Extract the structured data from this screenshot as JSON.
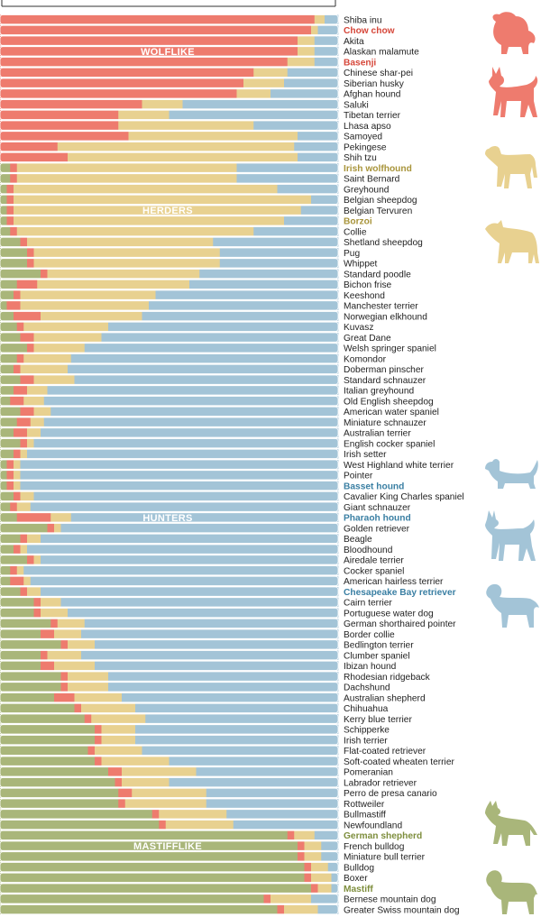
{
  "colors": {
    "wolflike": "#EE7B6E",
    "herders": "#E8D190",
    "hunters": "#A3C4D7",
    "mastifflike": "#A9B67A",
    "label_default": "#222222",
    "label_wolflike": "#D6473A",
    "label_herders": "#A8943A",
    "label_hunters": "#3A7FA3",
    "label_mastifflike": "#7E8E3D"
  },
  "chart_data": {
    "type": "bar",
    "orientation": "horizontal",
    "stacked": true,
    "normalized": true,
    "stack_order": [
      "Mastifflike",
      "Wolflike",
      "Herders",
      "Hunters"
    ],
    "group_labels": [
      {
        "text": "WOLFLIKE",
        "at_breed": "Alaskan malamute"
      },
      {
        "text": "HERDERS",
        "at_breed": "Belgian Tervuren"
      },
      {
        "text": "HUNTERS",
        "at_breed": "Pharaoh hound"
      },
      {
        "text": "MASTIFFLIKE",
        "at_breed": "French bulldog"
      }
    ],
    "highlighted_breeds": [
      {
        "name": "Chow chow",
        "group": "wolflike"
      },
      {
        "name": "Basenji",
        "group": "wolflike"
      },
      {
        "name": "Irish wolfhound",
        "group": "herders"
      },
      {
        "name": "Borzoi",
        "group": "herders"
      },
      {
        "name": "Basset hound",
        "group": "hunters"
      },
      {
        "name": "Pharaoh hound",
        "group": "hunters"
      },
      {
        "name": "Chesapeake Bay retriever",
        "group": "hunters"
      },
      {
        "name": "German shepherd",
        "group": "mastifflike"
      },
      {
        "name": "Mastiff",
        "group": "mastifflike"
      }
    ],
    "categories": [
      "Shiba inu",
      "Chow chow",
      "Akita",
      "Alaskan malamute",
      "Basenji",
      "Chinese shar-pei",
      "Siberian husky",
      "Afghan hound",
      "Saluki",
      "Tibetan terrier",
      "Lhasa apso",
      "Samoyed",
      "Pekingese",
      "Shih tzu",
      "Irish wolfhound",
      "Saint Bernard",
      "Greyhound",
      "Belgian sheepdog",
      "Belgian Tervuren",
      "Borzoi",
      "Collie",
      "Shetland sheepdog",
      "Pug",
      "Whippet",
      "Standard poodle",
      "Bichon frise",
      "Keeshond",
      "Manchester terrier",
      "Norwegian elkhound",
      "Kuvasz",
      "Great Dane",
      "Welsh springer spaniel",
      "Komondor",
      "Doberman pinscher",
      "Standard schnauzer",
      "Italian greyhound",
      "Old English sheepdog",
      "American water spaniel",
      "Miniature schnauzer",
      "Australian terrier",
      "English cocker spaniel",
      "Irish setter",
      "West Highland white terrier",
      "Pointer",
      "Basset hound",
      "Cavalier King Charles spaniel",
      "Giant schnauzer",
      "Pharaoh hound",
      "Golden retriever",
      "Beagle",
      "Bloodhound",
      "Airedale terrier",
      "Cocker spaniel",
      "American hairless terrier",
      "Chesapeake Bay retriever",
      "Cairn terrier",
      "Portuguese water dog",
      "German shorthaired pointer",
      "Border collie",
      "Bedlington terrier",
      "Clumber spaniel",
      "Ibizan hound",
      "Rhodesian ridgeback",
      "Dachshund",
      "Australian shepherd",
      "Chihuahua",
      "Kerry blue terrier",
      "Schipperke",
      "Irish terrier",
      "Flat-coated retriever",
      "Soft-coated wheaten terrier",
      "Pomeranian",
      "Labrador retriever",
      "Perro de presa canario",
      "Rottweiler",
      "Bullmastiff",
      "Newfoundland",
      "German shepherd",
      "French bulldog",
      "Miniature bull terrier",
      "Bulldog",
      "Boxer",
      "Mastiff",
      "Bernese mountain dog",
      "Greater Swiss mountain dog"
    ],
    "series": [
      {
        "key": "mastifflike",
        "values": [
          0.0,
          0.0,
          0.0,
          0.0,
          0.0,
          0.0,
          0.0,
          0.0,
          0.0,
          0.0,
          0.0,
          0.0,
          0.0,
          0.0,
          0.03,
          0.03,
          0.02,
          0.02,
          0.02,
          0.02,
          0.03,
          0.06,
          0.08,
          0.08,
          0.12,
          0.05,
          0.04,
          0.02,
          0.04,
          0.05,
          0.06,
          0.08,
          0.05,
          0.04,
          0.06,
          0.04,
          0.03,
          0.06,
          0.05,
          0.04,
          0.06,
          0.04,
          0.02,
          0.02,
          0.02,
          0.04,
          0.03,
          0.05,
          0.14,
          0.06,
          0.04,
          0.08,
          0.03,
          0.03,
          0.06,
          0.1,
          0.1,
          0.15,
          0.12,
          0.18,
          0.12,
          0.12,
          0.18,
          0.18,
          0.16,
          0.22,
          0.25,
          0.28,
          0.28,
          0.26,
          0.28,
          0.32,
          0.34,
          0.35,
          0.35,
          0.45,
          0.47,
          0.85,
          0.88,
          0.88,
          0.9,
          0.9,
          0.92,
          0.78,
          0.82
        ]
      },
      {
        "key": "wolflike",
        "values": [
          0.93,
          0.92,
          0.88,
          0.88,
          0.85,
          0.75,
          0.72,
          0.7,
          0.42,
          0.35,
          0.35,
          0.38,
          0.17,
          0.2,
          0.02,
          0.02,
          0.02,
          0.02,
          0.02,
          0.02,
          0.02,
          0.02,
          0.02,
          0.02,
          0.02,
          0.06,
          0.02,
          0.04,
          0.08,
          0.02,
          0.04,
          0.02,
          0.02,
          0.02,
          0.04,
          0.04,
          0.04,
          0.04,
          0.04,
          0.04,
          0.02,
          0.02,
          0.02,
          0.02,
          0.02,
          0.02,
          0.02,
          0.1,
          0.02,
          0.02,
          0.02,
          0.02,
          0.02,
          0.04,
          0.02,
          0.02,
          0.02,
          0.02,
          0.04,
          0.02,
          0.02,
          0.04,
          0.02,
          0.02,
          0.06,
          0.02,
          0.02,
          0.02,
          0.02,
          0.02,
          0.02,
          0.04,
          0.02,
          0.04,
          0.02,
          0.02,
          0.02,
          0.02,
          0.02,
          0.02,
          0.02,
          0.02,
          0.02,
          0.02,
          0.02
        ]
      },
      {
        "key": "herders",
        "values": [
          0.03,
          0.02,
          0.05,
          0.05,
          0.08,
          0.1,
          0.12,
          0.1,
          0.12,
          0.15,
          0.4,
          0.5,
          0.7,
          0.68,
          0.65,
          0.65,
          0.78,
          0.88,
          0.85,
          0.8,
          0.7,
          0.55,
          0.55,
          0.55,
          0.45,
          0.45,
          0.4,
          0.38,
          0.3,
          0.25,
          0.2,
          0.15,
          0.14,
          0.14,
          0.12,
          0.06,
          0.06,
          0.05,
          0.04,
          0.04,
          0.02,
          0.02,
          0.02,
          0.02,
          0.02,
          0.04,
          0.04,
          0.06,
          0.02,
          0.04,
          0.02,
          0.02,
          0.02,
          0.02,
          0.04,
          0.06,
          0.08,
          0.08,
          0.08,
          0.08,
          0.1,
          0.12,
          0.12,
          0.12,
          0.14,
          0.16,
          0.16,
          0.1,
          0.1,
          0.14,
          0.2,
          0.22,
          0.14,
          0.22,
          0.24,
          0.2,
          0.2,
          0.06,
          0.05,
          0.05,
          0.05,
          0.06,
          0.04,
          0.12,
          0.1
        ]
      },
      {
        "key": "hunters",
        "values": [
          0.04,
          0.06,
          0.07,
          0.07,
          0.07,
          0.15,
          0.16,
          0.2,
          0.46,
          0.5,
          0.25,
          0.12,
          0.13,
          0.12,
          0.3,
          0.3,
          0.18,
          0.08,
          0.11,
          0.16,
          0.25,
          0.37,
          0.35,
          0.35,
          0.41,
          0.44,
          0.54,
          0.56,
          0.58,
          0.68,
          0.7,
          0.75,
          0.79,
          0.8,
          0.78,
          0.86,
          0.87,
          0.85,
          0.87,
          0.88,
          0.9,
          0.92,
          0.94,
          0.94,
          0.94,
          0.9,
          0.91,
          0.79,
          0.82,
          0.88,
          0.92,
          0.88,
          0.93,
          0.91,
          0.88,
          0.82,
          0.8,
          0.75,
          0.76,
          0.72,
          0.76,
          0.72,
          0.68,
          0.68,
          0.64,
          0.6,
          0.57,
          0.6,
          0.6,
          0.58,
          0.5,
          0.42,
          0.5,
          0.39,
          0.39,
          0.33,
          0.31,
          0.07,
          0.05,
          0.05,
          0.03,
          0.02,
          0.02,
          0.08,
          0.06
        ]
      }
    ]
  }
}
